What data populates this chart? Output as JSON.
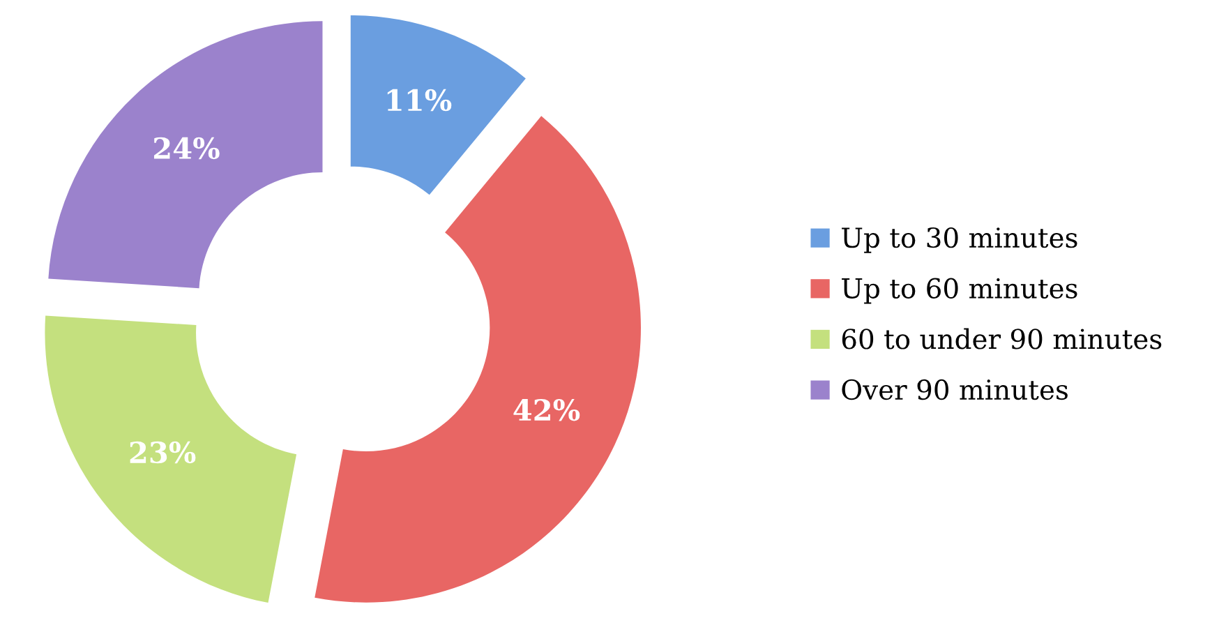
{
  "chart_data": {
    "type": "donut",
    "categories": [
      "Up to 30 minutes",
      "Up to 60 minutes",
      "60 to under 90 minutes",
      "Over 90 minutes"
    ],
    "values": [
      11,
      42,
      23,
      24
    ],
    "colors": [
      "#6a9ee0",
      "#e86664",
      "#c4e07e",
      "#9b82cc"
    ],
    "value_labels": [
      "11%",
      "42%",
      "23%",
      "24%"
    ],
    "legend": "right"
  }
}
